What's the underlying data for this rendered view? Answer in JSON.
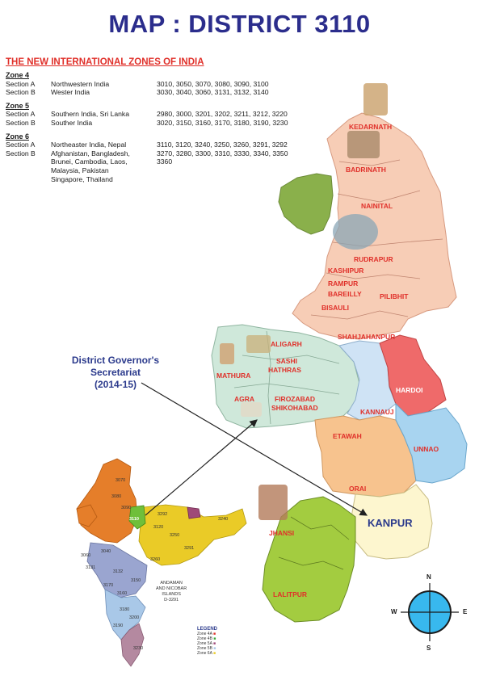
{
  "title": "MAP : DISTRICT 3110",
  "subtitle": "THE NEW INTERNATIONAL ZONES OF INDIA",
  "zones": [
    {
      "heading": "Zone 4",
      "rows": [
        {
          "section": "Section A",
          "region": "Northwestern India",
          "districts": "3010, 3050, 3070, 3080, 3090, 3100"
        },
        {
          "section": "Section B",
          "region": "Wester India",
          "districts": "3030, 3040, 3060, 3131, 3132, 3140"
        }
      ]
    },
    {
      "heading": "Zone 5",
      "rows": [
        {
          "section": "Section A",
          "region": "Southern India, Sri Lanka",
          "districts": "2980, 3000, 3201, 3202, 3211, 3212, 3220"
        },
        {
          "section": "Section B",
          "region": "Souther India",
          "districts": "3020, 3150, 3160, 3170, 3180, 3190, 3230"
        }
      ]
    },
    {
      "heading": "Zone 6",
      "rows": [
        {
          "section": "Section A",
          "region": "Northeaster India, Nepal",
          "districts": "3110, 3120, 3240, 3250, 3260, 3291, 3292"
        },
        {
          "section": "Section B",
          "region": "Afghanistan, Bangladesh,",
          "districts": "3270, 3280, 3300, 3310, 3330, 3340, 3350"
        },
        {
          "section": "",
          "region": "Brunei, Cambodia, Laos,",
          "districts": "3360"
        },
        {
          "section": "",
          "region": "Malaysia, Pakistan",
          "districts": ""
        },
        {
          "section": "",
          "region": "Singapore, Thailand",
          "districts": ""
        }
      ]
    }
  ],
  "secretariat": {
    "line1": "District Governor's Secretariat",
    "line2": "(2014-15)"
  },
  "cities": {
    "kedarnath": "KEDARNATH",
    "badrinath": "BADRINATH",
    "nainital": "NAINITAL",
    "rudrapur": "RUDRAPUR",
    "kashipur": "KASHIPUR",
    "rampur": "RAMPUR",
    "bareilly": "BAREILLY",
    "pilibhit": "PILIBHIT",
    "bisauli": "BISAULI",
    "shahjahanpur": "SHAHJAHANPUR",
    "aligarh": "ALIGARH",
    "sashi": "SASHI",
    "hathras": "HATHRAS",
    "mathura": "MATHURA",
    "agra": "AGRA",
    "firozabad": "FIROZABAD",
    "shikohabad": "SHIKOHABAD",
    "hardoi": "HARDOI",
    "kannauj": "KANNAUJ",
    "etawah": "ETAWAH",
    "unnao": "UNNAO",
    "orai": "ORAI",
    "kanpur": "KANPUR",
    "jhansi": "JHANSI",
    "lalitpur": "LALITPUR"
  },
  "india_labels": [
    "3070",
    "3080",
    "3090",
    "3110",
    "3292",
    "3240",
    "3120",
    "3250",
    "3040",
    "3060",
    "3260",
    "3131",
    "3132",
    "3291",
    "3160",
    "3150",
    "3170",
    "3180",
    "3190",
    "3200",
    "3230"
  ],
  "andaman": {
    "line1": "ANDAMAN",
    "line2": "AND NICOBAR",
    "line3": "ISLANDS",
    "line4": "D-3291"
  },
  "legend": {
    "title": "LEGEND",
    "items": [
      "Zone 4A",
      "Zone 4B",
      "Zone 5A",
      "Zone 5B",
      "Zone 6A"
    ]
  },
  "compass": {
    "n": "N",
    "s": "S",
    "e": "E",
    "w": "W"
  },
  "colors": {
    "title": "#2b2d8c",
    "subtitle": "#e0302a",
    "uttarakhand": "#f7cdb6",
    "rampur_region": "#f7cdb6",
    "western": "#cfe8da",
    "green_patch": "#8ab04b",
    "kannauj": "#cfe3f5",
    "hardoi": "#ef6a6a",
    "etawah": "#f7c38e",
    "unnao": "#a8d4f0",
    "kanpur": "#fdf6cf",
    "lalitpur": "#a3cc40",
    "compass": "#38b8ee",
    "label": "#e0302a"
  }
}
